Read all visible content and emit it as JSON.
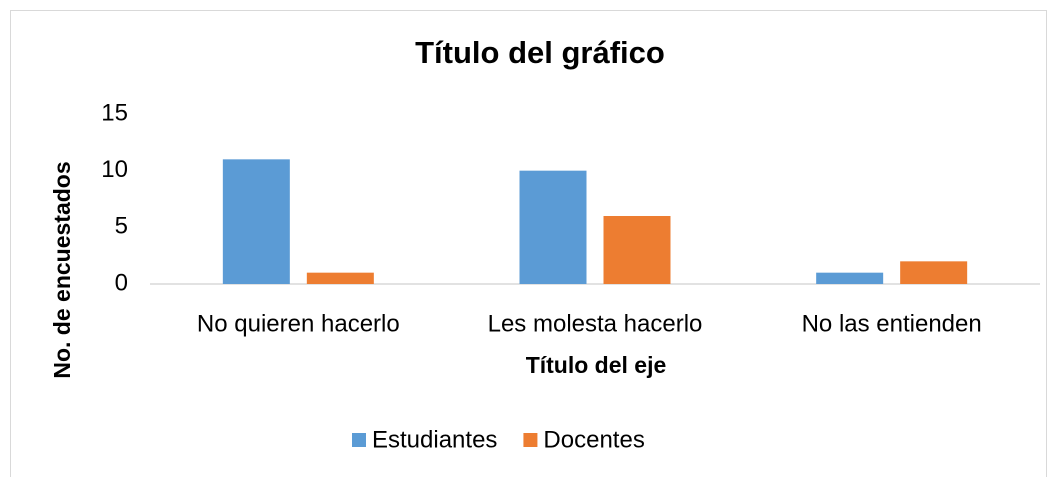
{
  "chart_data": {
    "type": "bar",
    "title": "Título del gráfico",
    "x_label": "Título del eje",
    "y_label": "No. de encuestados",
    "categories": [
      "No quieren hacerlo",
      "Les molesta hacerlo",
      "No las entienden"
    ],
    "series": [
      {
        "name": "Estudiantes",
        "color": "#5b9bd5",
        "values": [
          11,
          10,
          1
        ]
      },
      {
        "name": "Docentes",
        "color": "#ed7d31",
        "values": [
          1,
          6,
          2
        ]
      }
    ],
    "ylim": [
      0,
      15
    ],
    "yticks": [
      0,
      5,
      10,
      15
    ],
    "grid": false,
    "legend": "bottom"
  }
}
